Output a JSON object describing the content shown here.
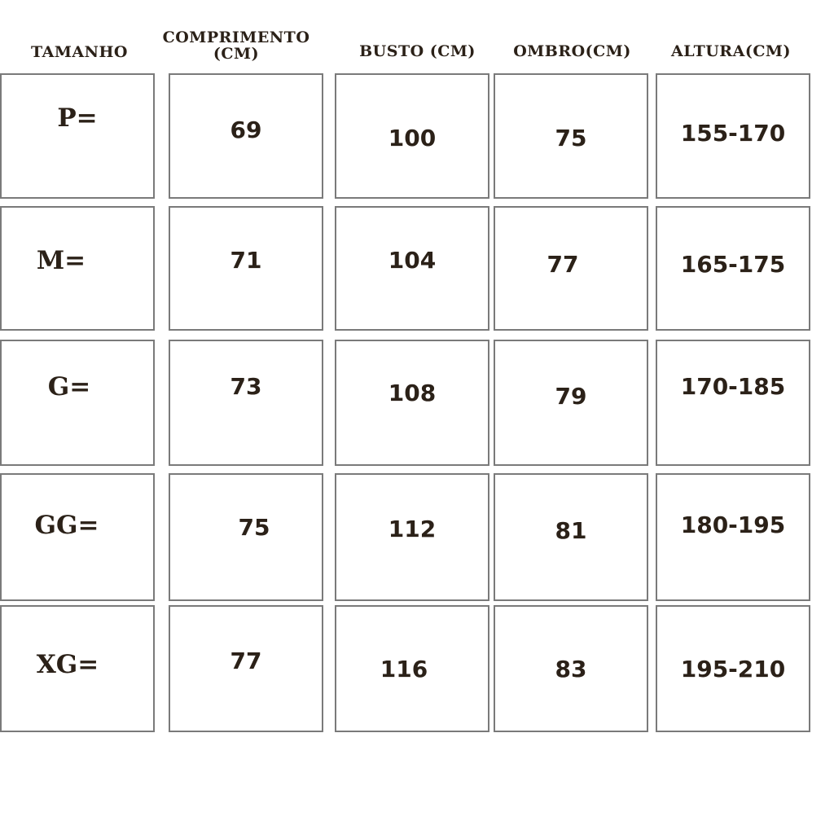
{
  "headers": [
    "TAMANHO",
    "COMPRIMENTO (CM)",
    "BUSTO (CM)",
    "OMBRO(CM)",
    "ALTURA(CM)"
  ],
  "header_comprimento_line1": "COMPRIMENTO",
  "header_comprimento_line2": "(CM)",
  "rows": [
    {
      "size": "P=",
      "comprimento": "69",
      "busto": "100",
      "ombro": "75",
      "altura": "155-170"
    },
    {
      "size": "M=",
      "comprimento": "71",
      "busto": "104",
      "ombro": "77",
      "altura": "165-175"
    },
    {
      "size": "G=",
      "comprimento": "73",
      "busto": "108",
      "ombro": "79",
      "altura": "170-185"
    },
    {
      "size": "GG=",
      "comprimento": "75",
      "busto": "112",
      "ombro": "81",
      "altura": "180-195"
    },
    {
      "size": "XG=",
      "comprimento": "77",
      "busto": "116",
      "ombro": "83",
      "altura": "195-210"
    }
  ],
  "colors": {
    "text": "#2b2118",
    "border": "#7a7a7a",
    "background": "#ffffff"
  }
}
